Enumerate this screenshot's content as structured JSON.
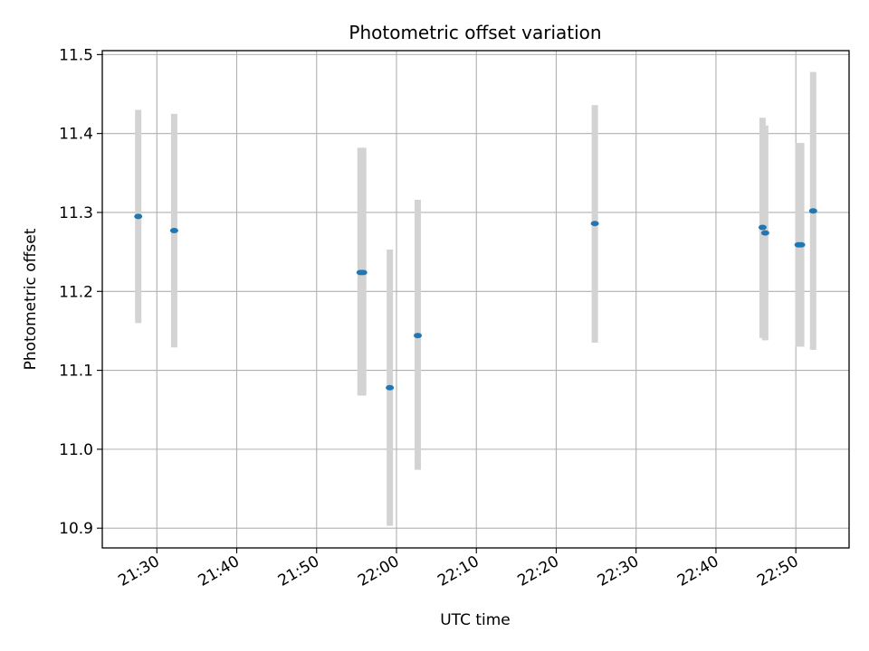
{
  "chart_data": {
    "type": "scatter",
    "title": "Photometric offset variation",
    "xlabel": "UTC time",
    "ylabel": "Photometric offset",
    "x_ticks": [
      "21:30",
      "21:40",
      "21:50",
      "22:00",
      "22:10",
      "22:20",
      "22:30",
      "22:40",
      "22:50"
    ],
    "y_ticks": [
      "10.9",
      "11.0",
      "11.1",
      "11.2",
      "11.3",
      "11.4",
      "11.5"
    ],
    "xlim": [
      "21:23:10",
      "22:56:40"
    ],
    "ylim": [
      10.875,
      11.505
    ],
    "grid": true,
    "error_bar_color": "#d3d3d3",
    "marker_color": "#1f77b4",
    "points": [
      {
        "time": "21:27:40",
        "y": 11.295,
        "ylow": 11.16,
        "yhigh": 11.43
      },
      {
        "time": "21:32:10",
        "y": 11.277,
        "ylow": 11.129,
        "yhigh": 11.425
      },
      {
        "time": "21:55:30",
        "y": 11.224,
        "ylow": 11.068,
        "yhigh": 11.382
      },
      {
        "time": "21:55:50",
        "y": 11.224,
        "ylow": 11.068,
        "yhigh": 11.382
      },
      {
        "time": "21:59:10",
        "y": 11.078,
        "ylow": 10.903,
        "yhigh": 11.253
      },
      {
        "time": "22:02:40",
        "y": 11.144,
        "ylow": 10.974,
        "yhigh": 11.316
      },
      {
        "time": "22:24:50",
        "y": 11.286,
        "ylow": 11.135,
        "yhigh": 11.436
      },
      {
        "time": "22:45:50",
        "y": 11.281,
        "ylow": 11.141,
        "yhigh": 11.42
      },
      {
        "time": "22:46:10",
        "y": 11.274,
        "ylow": 11.138,
        "yhigh": 11.41
      },
      {
        "time": "22:50:20",
        "y": 11.259,
        "ylow": 11.13,
        "yhigh": 11.388
      },
      {
        "time": "22:50:40",
        "y": 11.259,
        "ylow": 11.13,
        "yhigh": 11.388
      },
      {
        "time": "22:52:10",
        "y": 11.302,
        "ylow": 11.126,
        "yhigh": 11.478
      }
    ]
  }
}
